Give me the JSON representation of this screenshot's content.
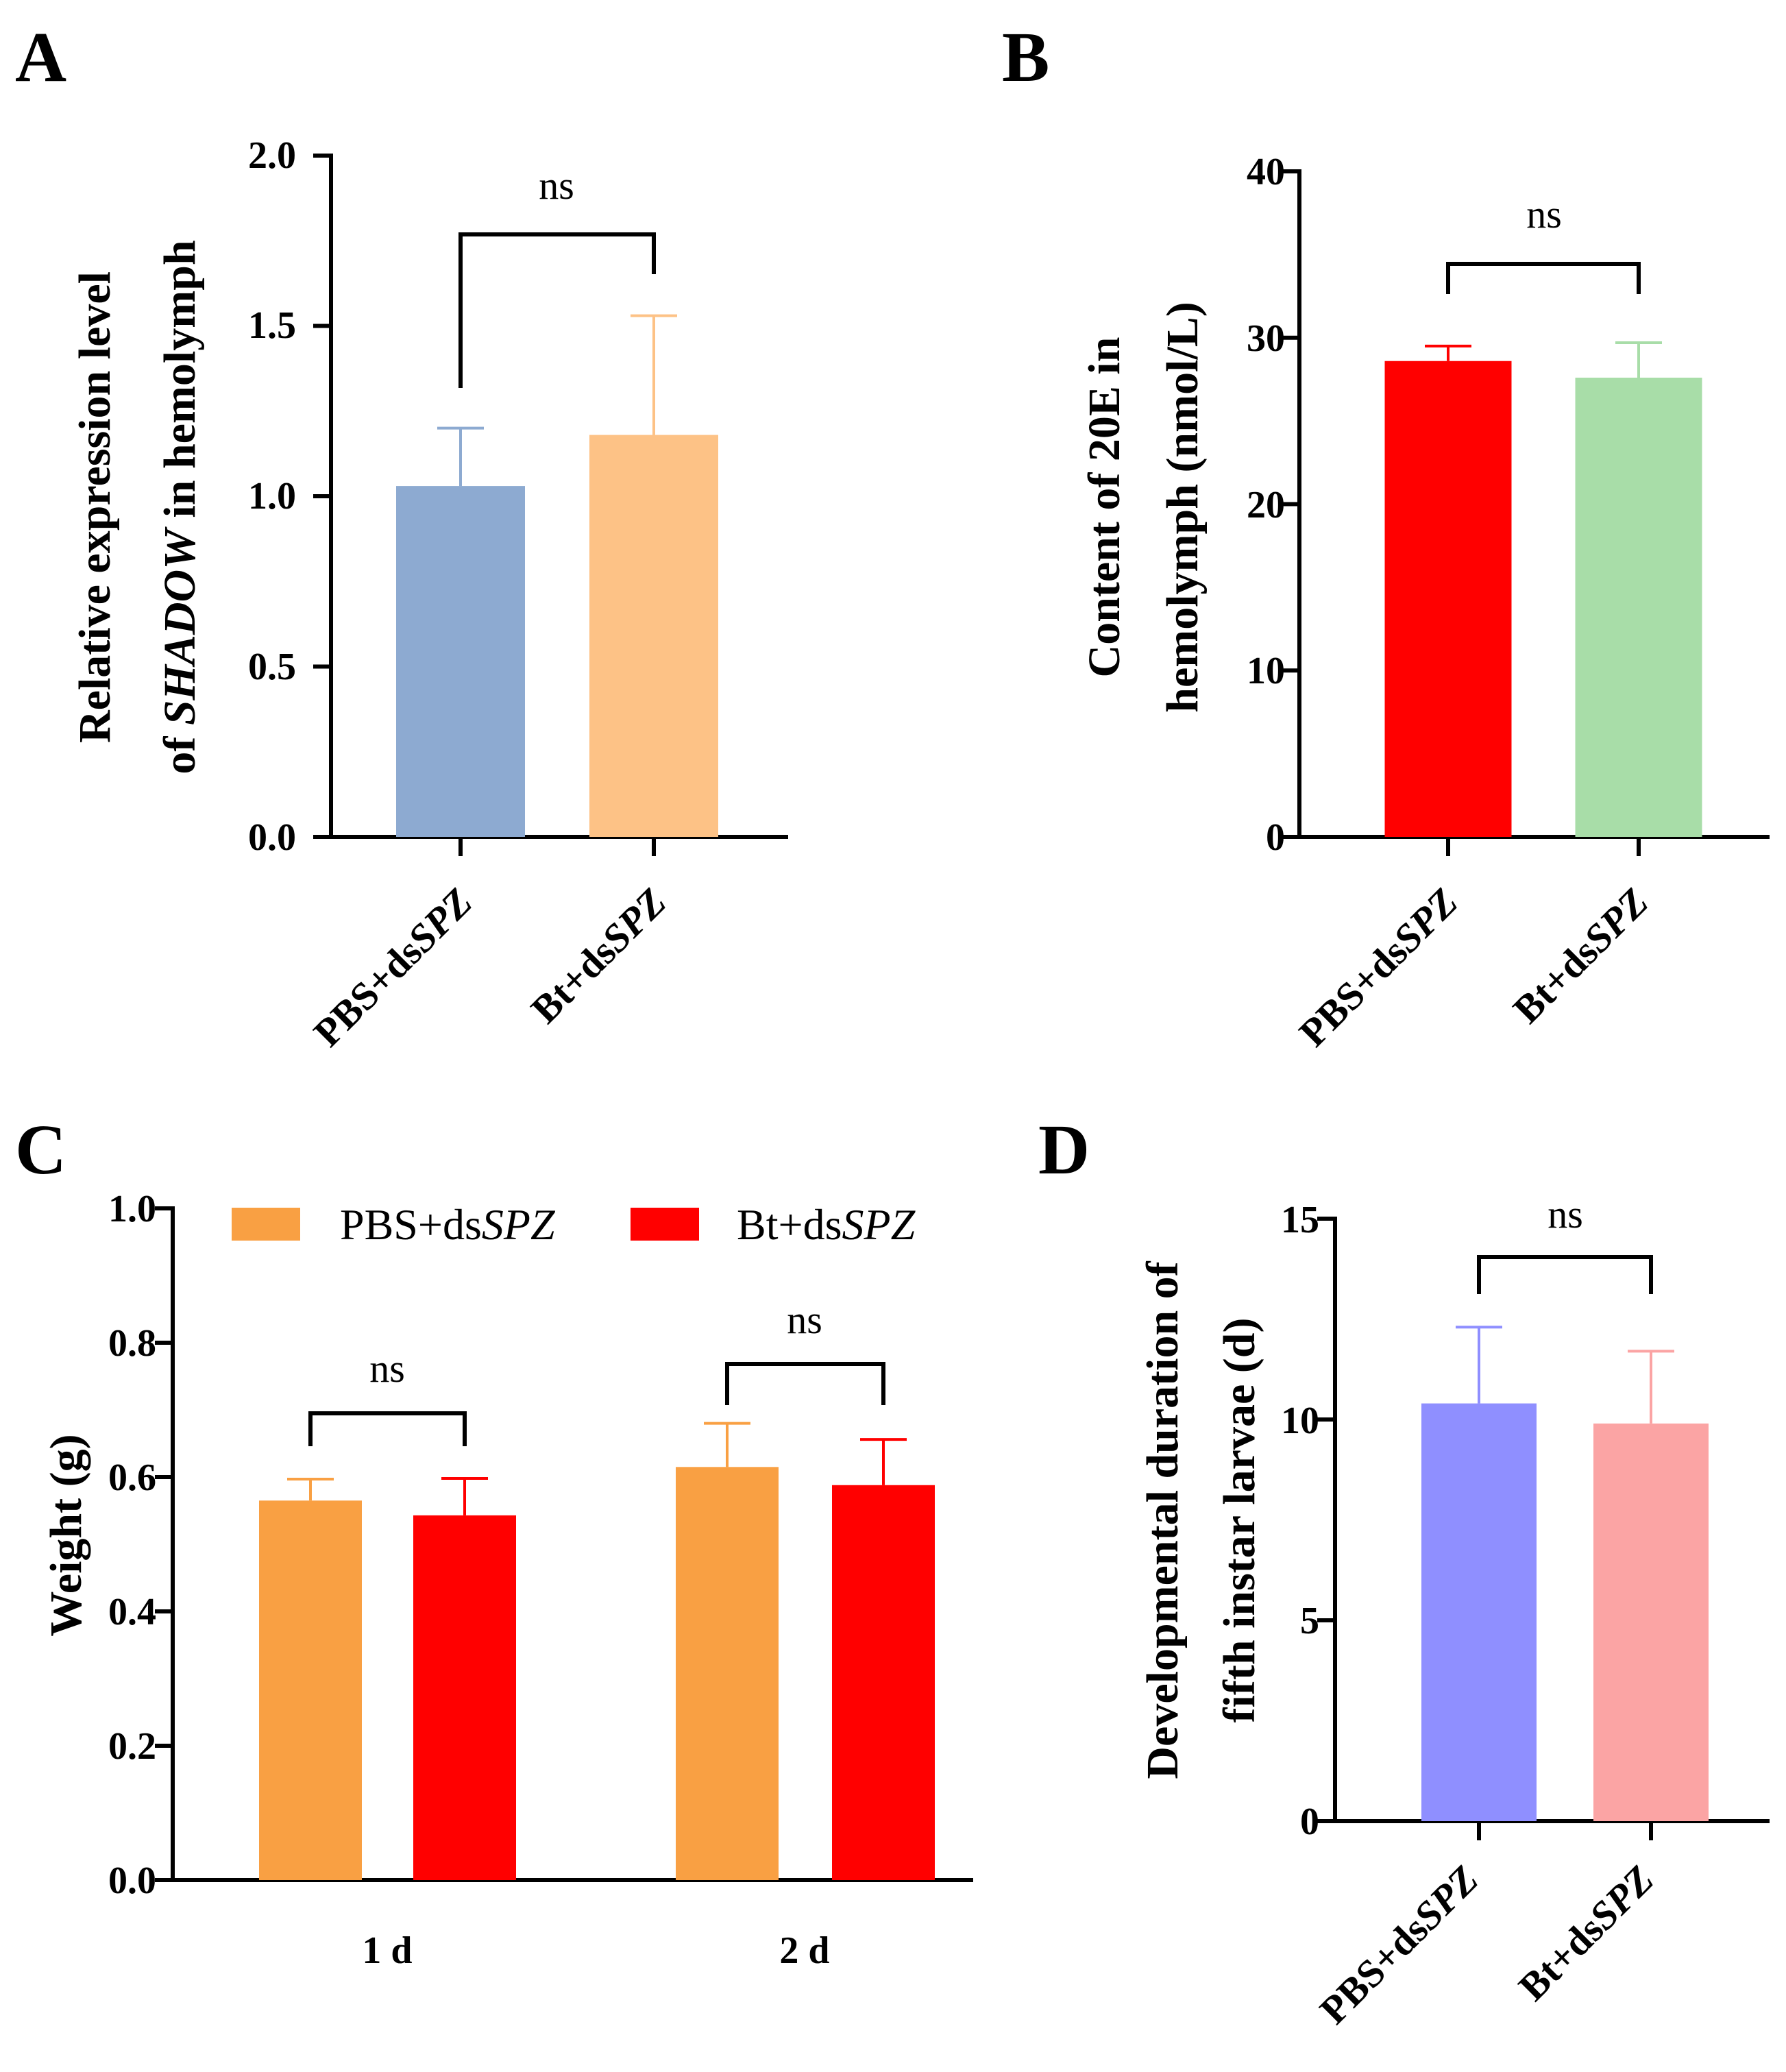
{
  "figure": {
    "panels": [
      "A",
      "B",
      "C",
      "D"
    ]
  },
  "chart_data": [
    {
      "panel": "A",
      "type": "bar",
      "ylabel_line1": "Relative expression level",
      "ylabel_line2_pre": "of ",
      "ylabel_line2_italic": "SHADOW",
      "ylabel_line2_post": " in hemolymph",
      "ylim": [
        0,
        2.0
      ],
      "yticks": [
        "0.0",
        "0.5",
        "1.0",
        "1.5",
        "2.0"
      ],
      "categories": [
        {
          "prefix": "PBS+ds",
          "italic": "SPZ"
        },
        {
          "prefix": "Bt+ds",
          "italic": "SPZ"
        }
      ],
      "values": [
        1.03,
        1.18
      ],
      "errors": [
        0.17,
        0.35
      ],
      "colors": [
        "#8DAAD1",
        "#FDC286"
      ],
      "significance": "ns"
    },
    {
      "panel": "B",
      "type": "bar",
      "ylabel_line1": "Content of 20E in",
      "ylabel_line2": "hemolymph (nmol/L)",
      "ylim": [
        0,
        40
      ],
      "yticks": [
        "0",
        "10",
        "20",
        "30",
        "40"
      ],
      "categories": [
        {
          "prefix": "PBS+ds",
          "italic": "SPZ"
        },
        {
          "prefix": "Bt+ds",
          "italic": "SPZ"
        }
      ],
      "values": [
        28.6,
        27.6
      ],
      "errors": [
        0.9,
        2.1
      ],
      "colors": [
        "#FF0000",
        "#A8DDA8"
      ],
      "significance": "ns"
    },
    {
      "panel": "C",
      "type": "bar",
      "ylabel": "Weight (g)",
      "ylim": [
        0,
        1.0
      ],
      "yticks": [
        "0.0",
        "0.2",
        "0.4",
        "0.6",
        "0.8",
        "1.0"
      ],
      "categories": [
        "1 d",
        "2 d"
      ],
      "legend_location": "top",
      "series": [
        {
          "prefix": "PBS+ds",
          "italic": "SPZ",
          "color": "#F9A043",
          "values": [
            0.565,
            0.615
          ],
          "errors": [
            0.032,
            0.065
          ]
        },
        {
          "prefix": "Bt+ds",
          "italic": "SPZ",
          "color": "#FF0000",
          "values": [
            0.543,
            0.588
          ],
          "errors": [
            0.055,
            0.068
          ]
        }
      ],
      "significance": [
        "ns",
        "ns"
      ]
    },
    {
      "panel": "D",
      "type": "bar",
      "ylabel_line1": "Developmental duration of",
      "ylabel_line2": "fifth instar larvae (d)",
      "ylim": [
        0,
        15
      ],
      "yticks": [
        "0",
        "5",
        "10",
        "15"
      ],
      "categories": [
        {
          "prefix": "PBS+ds",
          "italic": "SPZ"
        },
        {
          "prefix": "Bt+ds",
          "italic": "SPZ"
        }
      ],
      "values": [
        10.4,
        9.9
      ],
      "errors": [
        1.9,
        1.8
      ],
      "colors": [
        "#8F8FFF",
        "#FBA4A4"
      ],
      "significance": "ns"
    }
  ]
}
